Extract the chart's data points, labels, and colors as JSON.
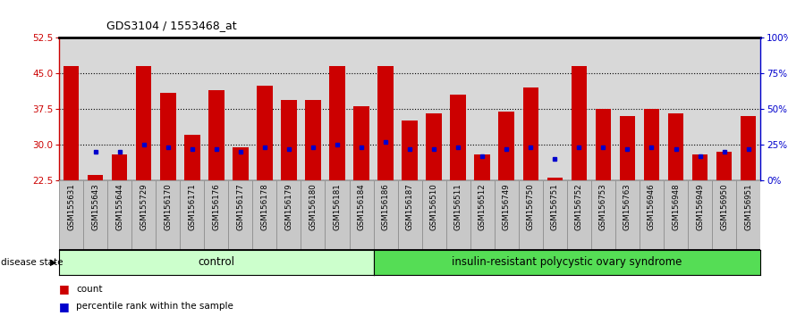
{
  "title": "GDS3104 / 1553468_at",
  "samples": [
    "GSM155631",
    "GSM155643",
    "GSM155644",
    "GSM155729",
    "GSM156170",
    "GSM156171",
    "GSM156176",
    "GSM156177",
    "GSM156178",
    "GSM156179",
    "GSM156180",
    "GSM156181",
    "GSM156184",
    "GSM156186",
    "GSM156187",
    "GSM156510",
    "GSM156511",
    "GSM156512",
    "GSM156749",
    "GSM156750",
    "GSM156751",
    "GSM156752",
    "GSM156753",
    "GSM156763",
    "GSM156946",
    "GSM156948",
    "GSM156949",
    "GSM156950",
    "GSM156951"
  ],
  "counts": [
    46.5,
    23.5,
    28.0,
    46.5,
    41.0,
    32.0,
    41.5,
    29.5,
    42.5,
    39.5,
    39.5,
    46.5,
    38.0,
    46.5,
    35.0,
    36.5,
    40.5,
    28.0,
    37.0,
    42.0,
    23.0,
    46.5,
    37.5,
    36.0,
    37.5,
    36.5,
    28.0,
    28.5,
    36.0
  ],
  "percentile_ranks": [
    null,
    28.5,
    28.5,
    30.0,
    29.5,
    29.0,
    29.0,
    28.5,
    29.5,
    29.0,
    29.5,
    30.0,
    29.5,
    30.5,
    29.0,
    29.0,
    29.5,
    27.5,
    29.0,
    29.5,
    27.0,
    29.5,
    29.5,
    29.0,
    29.5,
    29.0,
    27.5,
    28.5,
    29.0
  ],
  "n_control": 13,
  "n_total": 29,
  "control_label": "control",
  "disease_label": "insulin-resistant polycystic ovary syndrome",
  "disease_state_label": "disease state",
  "ylim_left": [
    22.5,
    52.5
  ],
  "yticks_left": [
    22.5,
    30.0,
    37.5,
    45.0,
    52.5
  ],
  "ylim_right": [
    0,
    100
  ],
  "yticks_right": [
    0,
    25,
    50,
    75,
    100
  ],
  "ytick_labels_right": [
    "0%",
    "25%",
    "50%",
    "75%",
    "100%"
  ],
  "bar_color": "#cc0000",
  "dot_color": "#0000cc",
  "bg_color": "#d8d8d8",
  "tick_bg_color": "#c8c8c8",
  "control_bg": "#ccffcc",
  "disease_bg": "#55dd55",
  "legend_count_label": "count",
  "legend_pct_label": "percentile rank within the sample"
}
